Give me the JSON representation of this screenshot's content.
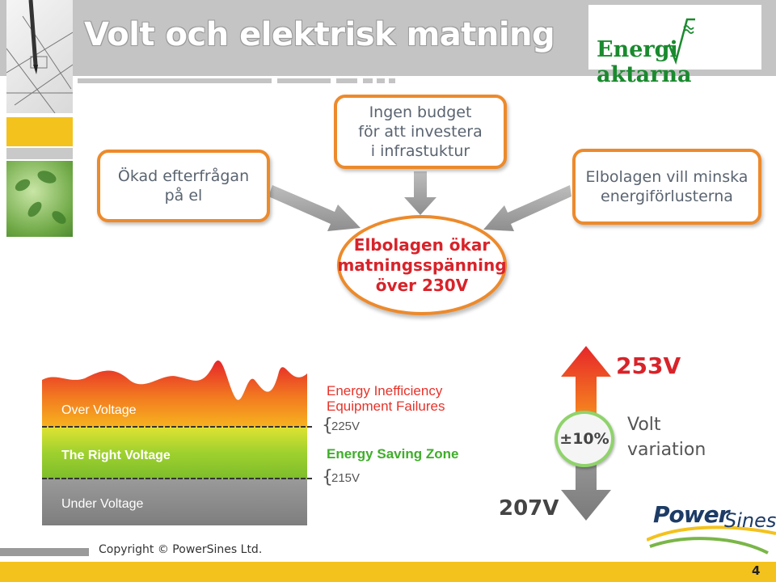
{
  "title": "Volt och elektrisk matning",
  "logo": {
    "text": "Energi",
    "text_after": "aktarna"
  },
  "boxes": {
    "left": "Ökad efterfrågan\npå el",
    "top": "Ingen budget\nför att investera\ni infrastuktur",
    "right": "Elbolagen vill minska\nenergiförlusterna",
    "center": "Elbolagen ökar\nmatningsspänning\növer 230V"
  },
  "voltage_chart": {
    "bands": [
      "Over Voltage",
      "The Right Voltage",
      "Under Voltage"
    ],
    "over_label_line1": "Energy Inefficiency",
    "over_label_line2": "Equipment Failures",
    "saving_zone": "Energy Saving Zone",
    "upper_limit": "225V",
    "lower_limit": "215V"
  },
  "variation": {
    "high": "253V",
    "low": "207V",
    "percent": "±10%",
    "label": "Volt\nvariation"
  },
  "powersines_logo": {
    "part1": "Power",
    "part2": "Sines"
  },
  "copyright": "Copyright © PowerSines Ltd.",
  "page_number": "4",
  "colors": {
    "accent_orange": "#ed8a2b",
    "center_text_red": "#d8232a",
    "footer_yellow": "#f3c21c",
    "green": "#1a8a2e"
  }
}
